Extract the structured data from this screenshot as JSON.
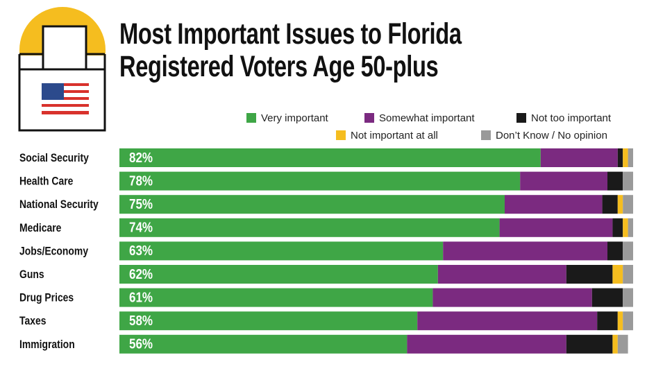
{
  "chart_data": {
    "type": "stacked-horizontal-bar",
    "title": "Most Important Issues to Florida Registered Voters Age 50-plus",
    "categories": [
      "Social Security",
      "Health Care",
      "National Security",
      "Medicare",
      "Jobs/Economy",
      "Guns",
      "Drug Prices",
      "Taxes",
      "Immigration"
    ],
    "xlim": [
      0,
      100
    ],
    "series": [
      {
        "name": "Very important",
        "color": "#3fa646",
        "values": [
          82,
          78,
          75,
          74,
          63,
          62,
          61,
          58,
          56
        ],
        "value_labels": [
          "82%",
          "78%",
          "75%",
          "74%",
          "63%",
          "62%",
          "61%",
          "58%",
          "56%"
        ]
      },
      {
        "name": "Somewhat important",
        "color": "#7b2a80",
        "values": [
          15,
          17,
          19,
          22,
          32,
          25,
          31,
          35,
          31
        ]
      },
      {
        "name": "Not too important",
        "color": "#1a1a1a",
        "values": [
          1,
          3,
          3,
          2,
          3,
          9,
          6,
          4,
          9
        ]
      },
      {
        "name": "Not important at all",
        "color": "#f5bd1f",
        "values": [
          1,
          0,
          1,
          1,
          0,
          2,
          0,
          1,
          1
        ]
      },
      {
        "name": "Don’t Know / No opinion",
        "color": "#9a9a9a",
        "values": [
          1,
          2,
          2,
          1,
          2,
          2,
          2,
          2,
          2
        ]
      }
    ]
  }
}
